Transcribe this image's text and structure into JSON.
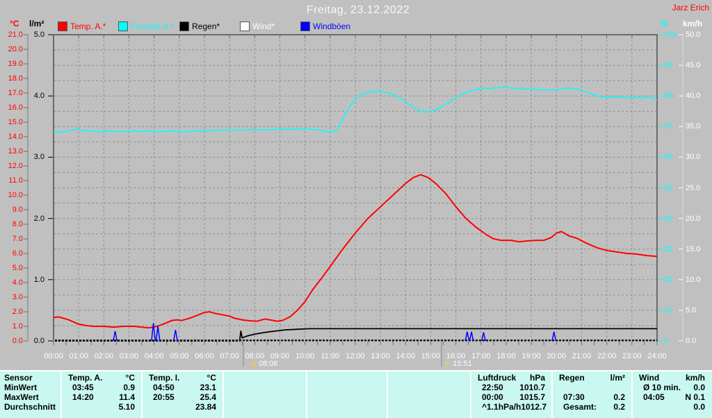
{
  "header": {
    "title": "Freitag, 23.12.2022",
    "station": "Jarz Erich"
  },
  "legend": [
    {
      "label": "Temp. A.*",
      "color": "#ff0000"
    },
    {
      "label": "Feuchte A.*",
      "color": "#00ffff"
    },
    {
      "label": "Regen*",
      "color": "#000000"
    },
    {
      "label": "Wind*",
      "color": "#ffffff"
    },
    {
      "label": "Windböen",
      "color": "#0000ff"
    }
  ],
  "axes": {
    "temp": {
      "unit": "°C",
      "min": 0,
      "max": 21,
      "step": 1,
      "decimals": 1,
      "color": "#ff0000"
    },
    "rain": {
      "unit": "l/m²",
      "min": 0,
      "max": 5,
      "step": 1,
      "decimals": 1,
      "color": "#000000"
    },
    "humidity": {
      "unit": "%",
      "min": 0,
      "max": 100,
      "step": 10,
      "decimals": 0,
      "color": "#00ffff"
    },
    "wind": {
      "unit": "km/h",
      "min": 0,
      "max": 50,
      "step": 5,
      "decimals": 1,
      "color": "#ffffff"
    },
    "time_labels": [
      "00:00",
      "01:00",
      "02:00",
      "03:00",
      "04:00",
      "05:00",
      "06:00",
      "07:00",
      "08:00",
      "09:00",
      "10:00",
      "11:00",
      "12:00",
      "13:00",
      "14:00",
      "15:00",
      "16:00",
      "17:00",
      "18:00",
      "19:00",
      "20:00",
      "21:00",
      "22:00",
      "23:00",
      "24:00"
    ]
  },
  "markers": {
    "sunrise": {
      "time": "08:06",
      "hour": 8.1
    },
    "sunset": {
      "time": "15:51",
      "hour": 15.85
    },
    "aux_tick_hours": [
      7.55,
      15.43
    ]
  },
  "chart_data": {
    "type": "line",
    "title": "Freitag, 23.12.2022",
    "x_unit": "hours",
    "x_range": [
      0,
      24
    ],
    "series": [
      {
        "name": "Temp. A.",
        "axis": "temp",
        "color": "#ff0000",
        "width": 2,
        "points": [
          [
            0,
            1.6
          ],
          [
            0.2,
            1.65
          ],
          [
            0.4,
            1.55
          ],
          [
            0.6,
            1.45
          ],
          [
            0.8,
            1.3
          ],
          [
            1,
            1.15
          ],
          [
            1.3,
            1.05
          ],
          [
            1.6,
            1.0
          ],
          [
            2,
            1.0
          ],
          [
            2.4,
            0.95
          ],
          [
            2.8,
            1.0
          ],
          [
            3.2,
            1.0
          ],
          [
            3.5,
            0.95
          ],
          [
            3.75,
            0.9
          ],
          [
            4,
            0.95
          ],
          [
            4.2,
            1.05
          ],
          [
            4.5,
            1.25
          ],
          [
            4.7,
            1.4
          ],
          [
            4.9,
            1.45
          ],
          [
            5.1,
            1.4
          ],
          [
            5.4,
            1.55
          ],
          [
            5.7,
            1.75
          ],
          [
            6,
            1.95
          ],
          [
            6.2,
            2.0
          ],
          [
            6.4,
            1.9
          ],
          [
            6.7,
            1.8
          ],
          [
            7,
            1.7
          ],
          [
            7.2,
            1.55
          ],
          [
            7.5,
            1.45
          ],
          [
            7.8,
            1.38
          ],
          [
            8.1,
            1.35
          ],
          [
            8.4,
            1.5
          ],
          [
            8.6,
            1.45
          ],
          [
            8.9,
            1.35
          ],
          [
            9.1,
            1.4
          ],
          [
            9.4,
            1.65
          ],
          [
            9.7,
            2.1
          ],
          [
            10,
            2.7
          ],
          [
            10.3,
            3.5
          ],
          [
            10.7,
            4.4
          ],
          [
            11,
            5.1
          ],
          [
            11.5,
            6.3
          ],
          [
            12,
            7.4
          ],
          [
            12.5,
            8.4
          ],
          [
            13,
            9.2
          ],
          [
            13.5,
            10.0
          ],
          [
            14,
            10.8
          ],
          [
            14.3,
            11.2
          ],
          [
            14.6,
            11.4
          ],
          [
            14.9,
            11.2
          ],
          [
            15.2,
            10.8
          ],
          [
            15.6,
            10.1
          ],
          [
            16,
            9.2
          ],
          [
            16.4,
            8.4
          ],
          [
            16.8,
            7.8
          ],
          [
            17.2,
            7.3
          ],
          [
            17.5,
            7.0
          ],
          [
            17.8,
            6.9
          ],
          [
            18.2,
            6.9
          ],
          [
            18.5,
            6.8
          ],
          [
            18.8,
            6.85
          ],
          [
            19.2,
            6.9
          ],
          [
            19.5,
            6.9
          ],
          [
            19.8,
            7.1
          ],
          [
            20,
            7.4
          ],
          [
            20.2,
            7.5
          ],
          [
            20.5,
            7.2
          ],
          [
            20.8,
            7.05
          ],
          [
            21.2,
            6.7
          ],
          [
            21.6,
            6.4
          ],
          [
            22,
            6.2
          ],
          [
            22.4,
            6.1
          ],
          [
            22.8,
            6.0
          ],
          [
            23.2,
            5.95
          ],
          [
            23.6,
            5.85
          ],
          [
            24,
            5.8
          ]
        ]
      },
      {
        "name": "Feuchte A.",
        "axis": "humidity",
        "color": "#00ffff",
        "width": 1.5,
        "points": [
          [
            0,
            68.3
          ],
          [
            0.5,
            68.3
          ],
          [
            0.9,
            69.2
          ],
          [
            1.1,
            68.8
          ],
          [
            1.4,
            68.5
          ],
          [
            1.8,
            68.3
          ],
          [
            2.2,
            68.6
          ],
          [
            2.6,
            68.3
          ],
          [
            3,
            68.5
          ],
          [
            3.4,
            68.4
          ],
          [
            3.8,
            68.5
          ],
          [
            4.2,
            68.3
          ],
          [
            4.6,
            68.5
          ],
          [
            5,
            68.4
          ],
          [
            5.2,
            68.2
          ],
          [
            5.5,
            68.6
          ],
          [
            5.8,
            68.4
          ],
          [
            6,
            68.7
          ],
          [
            6.5,
            68.8
          ],
          [
            7,
            68.9
          ],
          [
            7.5,
            68.9
          ],
          [
            8,
            69.0
          ],
          [
            8.5,
            69.0
          ],
          [
            9,
            69.1
          ],
          [
            9.5,
            69.1
          ],
          [
            10,
            69.2
          ],
          [
            10.4,
            69.0
          ],
          [
            10.7,
            68.7
          ],
          [
            10.9,
            68.3
          ],
          [
            11.1,
            68.2
          ],
          [
            11.3,
            69.5
          ],
          [
            11.5,
            72.5
          ],
          [
            11.7,
            75.5
          ],
          [
            11.9,
            78.0
          ],
          [
            12.1,
            79.8
          ],
          [
            12.3,
            80.8
          ],
          [
            12.6,
            81.3
          ],
          [
            12.9,
            81.5
          ],
          [
            13.2,
            81.2
          ],
          [
            13.5,
            80.5
          ],
          [
            13.8,
            79.3
          ],
          [
            14.1,
            77.5
          ],
          [
            14.4,
            75.8
          ],
          [
            14.7,
            74.8
          ],
          [
            15,
            74.9
          ],
          [
            15.3,
            75.8
          ],
          [
            15.6,
            77.3
          ],
          [
            15.9,
            78.9
          ],
          [
            16.2,
            80.3
          ],
          [
            16.5,
            81.4
          ],
          [
            16.8,
            82.1
          ],
          [
            17.1,
            82.4
          ],
          [
            17.5,
            82.6
          ],
          [
            18,
            82.8
          ],
          [
            18.3,
            82.5
          ],
          [
            18.6,
            82.2
          ],
          [
            18.9,
            82.4
          ],
          [
            19.2,
            82.1
          ],
          [
            19.5,
            81.9
          ],
          [
            19.8,
            82.0
          ],
          [
            20.1,
            82.2
          ],
          [
            20.4,
            82.6
          ],
          [
            20.7,
            82.4
          ],
          [
            21,
            81.9
          ],
          [
            21.3,
            81.0
          ],
          [
            21.6,
            80.1
          ],
          [
            21.9,
            79.6
          ],
          [
            22.2,
            79.5
          ],
          [
            22.5,
            79.6
          ],
          [
            22.8,
            79.4
          ],
          [
            23.1,
            79.5
          ],
          [
            23.4,
            79.4
          ],
          [
            23.7,
            79.6
          ],
          [
            24,
            78.6
          ]
        ]
      },
      {
        "name": "Regen",
        "axis": "rain",
        "color": "#000000",
        "width": 1.8,
        "points": [
          [
            0,
            0
          ],
          [
            7.4,
            0
          ],
          [
            7.45,
            0.16
          ],
          [
            7.5,
            0.05
          ],
          [
            7.7,
            0.08
          ],
          [
            8,
            0.11
          ],
          [
            8.4,
            0.14
          ],
          [
            8.8,
            0.16
          ],
          [
            9.2,
            0.18
          ],
          [
            9.7,
            0.19
          ],
          [
            10.2,
            0.2
          ],
          [
            24,
            0.2
          ]
        ]
      },
      {
        "name": "Wind",
        "axis": "wind",
        "color": "#ffffff",
        "width": 1.2,
        "style": "dashed",
        "points": [
          [
            0,
            0
          ],
          [
            24,
            0
          ]
        ]
      }
    ],
    "gusts": {
      "name": "Windböen",
      "axis": "wind",
      "color": "#0000ff",
      "width": 1.5,
      "spikes": [
        [
          2.45,
          1.6
        ],
        [
          3.97,
          2.9
        ],
        [
          4.15,
          2.4
        ],
        [
          4.85,
          1.8
        ],
        [
          16.45,
          1.5
        ],
        [
          16.62,
          1.5
        ],
        [
          17.1,
          1.4
        ],
        [
          19.9,
          1.5
        ]
      ]
    }
  },
  "table": {
    "row_labels": [
      "Sensor",
      "MinWert",
      "MaxWert",
      "Durchschnitt"
    ],
    "columns": [
      {
        "name": "Temp. A.",
        "unit": "°C",
        "rows": [
          [
            "03:45",
            "0.9"
          ],
          [
            "14:20",
            "11.4"
          ],
          [
            "",
            "5.10"
          ]
        ]
      },
      {
        "name": "Temp. I.",
        "unit": "°C",
        "rows": [
          [
            "04:50",
            "23.1"
          ],
          [
            "20:55",
            "25.4"
          ],
          [
            "",
            "23.84"
          ]
        ]
      },
      {
        "name": "",
        "unit": "",
        "rows": [
          [
            "",
            ""
          ],
          [
            "",
            ""
          ],
          [
            "",
            ""
          ]
        ]
      },
      {
        "name": "",
        "unit": "",
        "rows": [
          [
            "",
            ""
          ],
          [
            "",
            ""
          ],
          [
            "",
            ""
          ]
        ]
      },
      {
        "name": "",
        "unit": "",
        "rows": [
          [
            "",
            ""
          ],
          [
            "",
            ""
          ],
          [
            "",
            ""
          ]
        ]
      },
      {
        "name": "Luftdruck",
        "unit": "hPa",
        "rows": [
          [
            "22:50",
            "1010.7"
          ],
          [
            "00:00",
            "1015.7"
          ],
          [
            "^1.1hPa/h",
            "1012.7"
          ]
        ]
      },
      {
        "name": "Regen",
        "unit": "l/m²",
        "rows": [
          [
            "",
            ""
          ],
          [
            "07:30",
            "0.2"
          ],
          [
            "Gesamt:",
            "0.2"
          ]
        ]
      },
      {
        "name": "Wind",
        "unit": "km/h",
        "rows": [
          [
            "Ø 10 min.",
            "0.0"
          ],
          [
            "04:05",
            "N 0.1"
          ],
          [
            "",
            "0.0"
          ]
        ]
      }
    ]
  }
}
